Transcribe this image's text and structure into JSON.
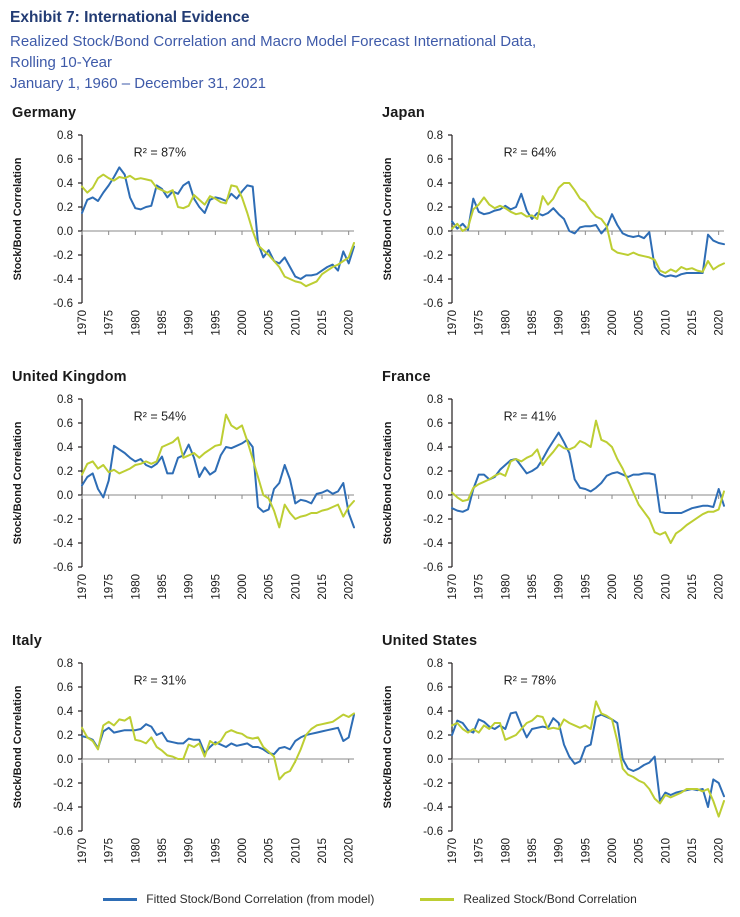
{
  "header": {
    "title": "Exhibit 7: International Evidence",
    "subtitle_line1": "Realized Stock/Bond Correlation and Macro Model Forecast International Data,",
    "subtitle_line2": "Rolling 10-Year",
    "date_range": "January 1, 1960 – December 31, 2021"
  },
  "colors": {
    "fitted_line": "#2e6db5",
    "realized_line": "#bdce33",
    "header_title": "#233c74",
    "header_subtitle": "#3e5aa9",
    "zero_line": "#8a8a8a",
    "axis": "#231f20",
    "text": "#1a1a1a"
  },
  "legend": {
    "fitted_label": "Fitted Stock/Bond Correlation (from model)",
    "realized_label": "Realized Stock/Bond Correlation"
  },
  "chart_data": [
    {
      "type": "line",
      "title": "Germany",
      "r2_label": "R² = 87%",
      "ylabel": "Stock/Bond Correlation",
      "ylim": [
        -0.6,
        0.8
      ],
      "yticks": [
        0.8,
        0.6,
        0.4,
        0.2,
        0.0,
        -0.2,
        -0.4,
        -0.6
      ],
      "xticks": [
        1970,
        1975,
        1980,
        1985,
        1990,
        1995,
        2000,
        2005,
        2010,
        2015,
        2020
      ],
      "x_years_range": [
        1970,
        2021
      ],
      "interval": "annual",
      "series": [
        {
          "name": "Fitted Stock/Bond Correlation (from model)",
          "color": "#2e6db5",
          "values": [
            0.15,
            0.26,
            0.28,
            0.25,
            0.32,
            0.38,
            0.45,
            0.53,
            0.47,
            0.28,
            0.19,
            0.18,
            0.2,
            0.21,
            0.38,
            0.35,
            0.28,
            0.33,
            0.31,
            0.38,
            0.41,
            0.27,
            0.2,
            0.15,
            0.26,
            0.28,
            0.27,
            0.25,
            0.31,
            0.27,
            0.33,
            0.38,
            0.37,
            -0.1,
            -0.22,
            -0.16,
            -0.25,
            -0.27,
            -0.22,
            -0.3,
            -0.38,
            -0.4,
            -0.37,
            -0.37,
            -0.36,
            -0.33,
            -0.3,
            -0.28,
            -0.33,
            -0.17,
            -0.27,
            -0.13
          ]
        },
        {
          "name": "Realized Stock/Bond Correlation",
          "color": "#bdce33",
          "values": [
            0.37,
            0.32,
            0.36,
            0.44,
            0.47,
            0.44,
            0.42,
            0.45,
            0.44,
            0.46,
            0.43,
            0.44,
            0.43,
            0.42,
            0.36,
            0.34,
            0.32,
            0.34,
            0.2,
            0.19,
            0.21,
            0.3,
            0.26,
            0.22,
            0.29,
            0.27,
            0.24,
            0.23,
            0.38,
            0.37,
            0.28,
            0.15,
            0.0,
            -0.12,
            -0.16,
            -0.2,
            -0.25,
            -0.3,
            -0.38,
            -0.4,
            -0.42,
            -0.43,
            -0.46,
            -0.44,
            -0.42,
            -0.36,
            -0.33,
            -0.3,
            -0.28,
            -0.25,
            -0.22,
            -0.1
          ]
        }
      ]
    },
    {
      "type": "line",
      "title": "Japan",
      "r2_label": "R² = 64%",
      "ylabel": "Stock/Bond Correlation",
      "ylim": [
        -0.6,
        0.8
      ],
      "yticks": [
        0.8,
        0.6,
        0.4,
        0.2,
        0.0,
        -0.2,
        -0.4,
        -0.6
      ],
      "xticks": [
        1970,
        1975,
        1980,
        1985,
        1990,
        1995,
        2000,
        2005,
        2010,
        2015,
        2020
      ],
      "x_years_range": [
        1970,
        2021
      ],
      "interval": "annual",
      "series": [
        {
          "name": "Fitted Stock/Bond Correlation (from model)",
          "color": "#2e6db5",
          "values": [
            0.08,
            0.02,
            0.06,
            0.01,
            0.27,
            0.16,
            0.14,
            0.15,
            0.17,
            0.18,
            0.21,
            0.18,
            0.2,
            0.31,
            0.17,
            0.1,
            0.15,
            0.13,
            0.15,
            0.19,
            0.14,
            0.1,
            0.0,
            -0.02,
            0.03,
            0.04,
            0.04,
            0.05,
            -0.02,
            0.03,
            0.14,
            0.05,
            -0.02,
            -0.04,
            -0.05,
            -0.04,
            -0.06,
            -0.01,
            -0.3,
            -0.36,
            -0.38,
            -0.37,
            -0.38,
            -0.36,
            -0.35,
            -0.35,
            -0.35,
            -0.35,
            -0.03,
            -0.08,
            -0.1,
            -0.11
          ]
        },
        {
          "name": "Realized Stock/Bond Correlation",
          "color": "#bdce33",
          "values": [
            0.02,
            0.06,
            0.0,
            0.03,
            0.18,
            0.22,
            0.28,
            0.22,
            0.19,
            0.21,
            0.19,
            0.16,
            0.14,
            0.15,
            0.12,
            0.13,
            0.1,
            0.29,
            0.22,
            0.27,
            0.36,
            0.4,
            0.4,
            0.34,
            0.27,
            0.24,
            0.17,
            0.12,
            0.1,
            0.04,
            -0.15,
            -0.18,
            -0.19,
            -0.2,
            -0.18,
            -0.2,
            -0.21,
            -0.22,
            -0.24,
            -0.33,
            -0.35,
            -0.32,
            -0.34,
            -0.3,
            -0.32,
            -0.31,
            -0.33,
            -0.34,
            -0.25,
            -0.32,
            -0.29,
            -0.27
          ]
        }
      ]
    },
    {
      "type": "line",
      "title": "United Kingdom",
      "r2_label": "R² = 54%",
      "ylabel": "Stock/Bond Correlation",
      "ylim": [
        -0.6,
        0.8
      ],
      "yticks": [
        0.8,
        0.6,
        0.4,
        0.2,
        0.0,
        -0.2,
        -0.4,
        -0.6
      ],
      "xticks": [
        1970,
        1975,
        1980,
        1985,
        1990,
        1995,
        2000,
        2005,
        2010,
        2015,
        2020
      ],
      "x_years_range": [
        1970,
        2021
      ],
      "interval": "annual",
      "series": [
        {
          "name": "Fitted Stock/Bond Correlation (from model)",
          "color": "#2e6db5",
          "values": [
            0.08,
            0.15,
            0.18,
            0.05,
            -0.02,
            0.12,
            0.41,
            0.38,
            0.35,
            0.31,
            0.28,
            0.3,
            0.25,
            0.23,
            0.26,
            0.32,
            0.18,
            0.18,
            0.31,
            0.33,
            0.42,
            0.31,
            0.15,
            0.23,
            0.17,
            0.2,
            0.33,
            0.4,
            0.39,
            0.41,
            0.43,
            0.46,
            0.4,
            -0.1,
            -0.14,
            -0.12,
            0.05,
            0.1,
            0.25,
            0.13,
            -0.07,
            -0.04,
            -0.05,
            -0.07,
            0.01,
            0.02,
            0.04,
            0.01,
            0.03,
            0.1,
            -0.15,
            -0.27
          ]
        },
        {
          "name": "Realized Stock/Bond Correlation",
          "color": "#bdce33",
          "values": [
            0.17,
            0.26,
            0.28,
            0.22,
            0.25,
            0.19,
            0.21,
            0.18,
            0.2,
            0.22,
            0.25,
            0.26,
            0.28,
            0.26,
            0.28,
            0.4,
            0.42,
            0.44,
            0.48,
            0.31,
            0.33,
            0.35,
            0.31,
            0.35,
            0.38,
            0.41,
            0.42,
            0.67,
            0.58,
            0.55,
            0.58,
            0.45,
            0.3,
            0.15,
            0.0,
            -0.03,
            -0.13,
            -0.27,
            -0.08,
            -0.15,
            -0.2,
            -0.18,
            -0.17,
            -0.15,
            -0.15,
            -0.13,
            -0.12,
            -0.1,
            -0.08,
            -0.18,
            -0.1,
            -0.05
          ]
        }
      ]
    },
    {
      "type": "line",
      "title": "France",
      "r2_label": "R² = 41%",
      "ylabel": "Stock/Bond Correlation",
      "ylim": [
        -0.6,
        0.8
      ],
      "yticks": [
        0.8,
        0.6,
        0.4,
        0.2,
        0.0,
        -0.2,
        -0.4,
        -0.6
      ],
      "xticks": [
        1970,
        1975,
        1980,
        1985,
        1990,
        1995,
        2000,
        2005,
        2010,
        2015,
        2020
      ],
      "x_years_range": [
        1970,
        2021
      ],
      "interval": "annual",
      "series": [
        {
          "name": "Fitted Stock/Bond Correlation (from model)",
          "color": "#2e6db5",
          "values": [
            -0.11,
            -0.13,
            -0.14,
            -0.12,
            0.05,
            0.17,
            0.17,
            0.13,
            0.15,
            0.21,
            0.25,
            0.29,
            0.3,
            0.24,
            0.18,
            0.2,
            0.23,
            0.3,
            0.38,
            0.45,
            0.52,
            0.44,
            0.35,
            0.13,
            0.06,
            0.05,
            0.03,
            0.06,
            0.1,
            0.16,
            0.18,
            0.19,
            0.17,
            0.15,
            0.17,
            0.17,
            0.18,
            0.18,
            0.17,
            -0.14,
            -0.15,
            -0.15,
            -0.15,
            -0.15,
            -0.13,
            -0.11,
            -0.1,
            -0.09,
            -0.09,
            -0.1,
            0.05,
            -0.09
          ]
        },
        {
          "name": "Realized Stock/Bond Correlation",
          "color": "#bdce33",
          "values": [
            0.02,
            -0.02,
            -0.05,
            -0.04,
            0.06,
            0.09,
            0.11,
            0.13,
            0.16,
            0.18,
            0.16,
            0.28,
            0.3,
            0.28,
            0.31,
            0.33,
            0.38,
            0.25,
            0.31,
            0.36,
            0.42,
            0.39,
            0.38,
            0.4,
            0.45,
            0.43,
            0.4,
            0.62,
            0.46,
            0.44,
            0.4,
            0.3,
            0.22,
            0.12,
            0.02,
            -0.08,
            -0.14,
            -0.2,
            -0.31,
            -0.33,
            -0.31,
            -0.4,
            -0.32,
            -0.29,
            -0.25,
            -0.22,
            -0.19,
            -0.16,
            -0.14,
            -0.14,
            -0.12,
            0.03
          ]
        }
      ]
    },
    {
      "type": "line",
      "title": "Italy",
      "r2_label": "R² = 31%",
      "ylabel": "Stock/Bond Correlation",
      "ylim": [
        -0.6,
        0.8
      ],
      "yticks": [
        0.8,
        0.6,
        0.4,
        0.2,
        0.0,
        -0.2,
        -0.4,
        -0.6
      ],
      "xticks": [
        1970,
        1975,
        1980,
        1985,
        1990,
        1995,
        2000,
        2005,
        2010,
        2015,
        2020
      ],
      "x_years_range": [
        1970,
        2021
      ],
      "interval": "annual",
      "series": [
        {
          "name": "Fitted Stock/Bond Correlation (from model)",
          "color": "#2e6db5",
          "values": [
            0.19,
            0.18,
            0.16,
            0.09,
            0.23,
            0.26,
            0.22,
            0.23,
            0.24,
            0.24,
            0.24,
            0.25,
            0.29,
            0.27,
            0.2,
            0.22,
            0.15,
            0.14,
            0.13,
            0.13,
            0.17,
            0.16,
            0.16,
            0.05,
            0.1,
            0.14,
            0.12,
            0.1,
            0.13,
            0.11,
            0.12,
            0.13,
            0.1,
            0.1,
            0.08,
            0.05,
            0.04,
            0.09,
            0.1,
            0.08,
            0.15,
            0.18,
            0.2,
            0.21,
            0.22,
            0.23,
            0.24,
            0.25,
            0.26,
            0.15,
            0.18,
            0.37
          ]
        },
        {
          "name": "Realized Stock/Bond Correlation",
          "color": "#bdce33",
          "values": [
            0.26,
            0.18,
            0.15,
            0.08,
            0.28,
            0.31,
            0.28,
            0.33,
            0.32,
            0.35,
            0.16,
            0.15,
            0.13,
            0.18,
            0.1,
            0.07,
            0.03,
            0.02,
            0.0,
            0.0,
            0.12,
            0.1,
            0.13,
            0.02,
            0.15,
            0.12,
            0.15,
            0.22,
            0.24,
            0.22,
            0.21,
            0.18,
            0.17,
            0.18,
            0.1,
            0.06,
            0.02,
            -0.17,
            -0.12,
            -0.1,
            -0.02,
            0.08,
            0.2,
            0.25,
            0.28,
            0.29,
            0.3,
            0.31,
            0.34,
            0.37,
            0.35,
            0.38
          ]
        }
      ]
    },
    {
      "type": "line",
      "title": "United States",
      "r2_label": "R² = 78%",
      "ylabel": "Stock/Bond Correlation",
      "ylim": [
        -0.6,
        0.8
      ],
      "yticks": [
        0.8,
        0.6,
        0.4,
        0.2,
        0.0,
        -0.2,
        -0.4,
        -0.6
      ],
      "xticks": [
        1970,
        1975,
        1980,
        1985,
        1990,
        1995,
        2000,
        2005,
        2010,
        2015,
        2020
      ],
      "x_years_range": [
        1970,
        2021
      ],
      "interval": "annual",
      "series": [
        {
          "name": "Fitted Stock/Bond Correlation (from model)",
          "color": "#2e6db5",
          "values": [
            0.2,
            0.32,
            0.3,
            0.24,
            0.22,
            0.33,
            0.31,
            0.27,
            0.25,
            0.28,
            0.25,
            0.38,
            0.39,
            0.28,
            0.18,
            0.25,
            0.26,
            0.27,
            0.26,
            0.34,
            0.3,
            0.12,
            0.02,
            -0.04,
            -0.02,
            0.1,
            0.12,
            0.35,
            0.37,
            0.35,
            0.33,
            0.3,
            0.0,
            -0.08,
            -0.1,
            -0.08,
            -0.05,
            -0.03,
            0.02,
            -0.35,
            -0.28,
            -0.3,
            -0.28,
            -0.27,
            -0.26,
            -0.25,
            -0.26,
            -0.25,
            -0.4,
            -0.17,
            -0.2,
            -0.31
          ]
        },
        {
          "name": "Realized Stock/Bond Correlation",
          "color": "#bdce33",
          "values": [
            0.28,
            0.3,
            0.25,
            0.22,
            0.25,
            0.22,
            0.28,
            0.25,
            0.3,
            0.3,
            0.16,
            0.18,
            0.2,
            0.25,
            0.3,
            0.32,
            0.36,
            0.35,
            0.25,
            0.26,
            0.25,
            0.33,
            0.3,
            0.28,
            0.26,
            0.28,
            0.25,
            0.48,
            0.38,
            0.36,
            0.33,
            0.15,
            -0.08,
            -0.13,
            -0.15,
            -0.18,
            -0.2,
            -0.25,
            -0.33,
            -0.37,
            -0.3,
            -0.32,
            -0.3,
            -0.28,
            -0.25,
            -0.25,
            -0.25,
            -0.27,
            -0.25,
            -0.35,
            -0.48,
            -0.35
          ]
        }
      ]
    }
  ]
}
